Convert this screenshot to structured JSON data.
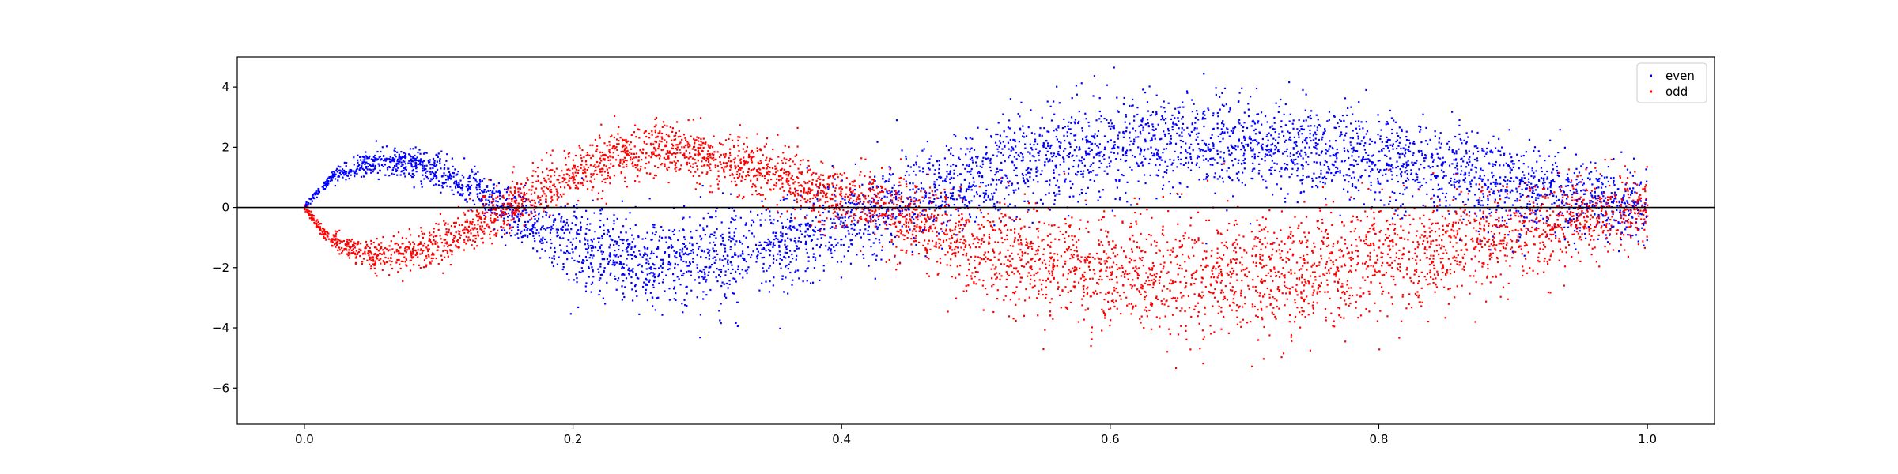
{
  "chart_data": {
    "type": "scatter",
    "title": "",
    "xlabel": "",
    "ylabel": "",
    "xlim": [
      -0.05,
      1.05
    ],
    "ylim": [
      -7.2,
      5.0
    ],
    "xticks": [
      0.0,
      0.2,
      0.4,
      0.6,
      0.8,
      1.0
    ],
    "xtick_labels": [
      "0.0",
      "0.2",
      "0.4",
      "0.6",
      "0.8",
      "1.0"
    ],
    "yticks": [
      4,
      2,
      0,
      -2,
      -4,
      -6
    ],
    "ytick_labels": [
      "4",
      "2",
      "0",
      "−2",
      "−4",
      "−6"
    ],
    "grid": false,
    "legend_position": "top-right",
    "reference_line": {
      "y": 0,
      "color": "#000000"
    },
    "points_per_series": 5000,
    "series": [
      {
        "name": "even",
        "color": "#0000ff",
        "marker": "dot",
        "trend": {
          "x": [
            0.0,
            0.02,
            0.05,
            0.08,
            0.11,
            0.14,
            0.17,
            0.2,
            0.23,
            0.26,
            0.29,
            0.32,
            0.35,
            0.38,
            0.41,
            0.44,
            0.47,
            0.5,
            0.55,
            0.6,
            0.65,
            0.7,
            0.75,
            0.8,
            0.85,
            0.9,
            0.95,
            1.0
          ],
          "y": [
            0.0,
            1.0,
            1.5,
            1.45,
            1.0,
            0.2,
            -0.6,
            -1.2,
            -1.6,
            -1.8,
            -1.8,
            -1.6,
            -1.2,
            -0.8,
            -0.3,
            0.1,
            0.5,
            1.0,
            1.6,
            2.1,
            2.2,
            2.1,
            1.9,
            1.6,
            1.2,
            0.7,
            0.3,
            0.0
          ]
        },
        "spread": {
          "x": [
            0.0,
            0.05,
            0.1,
            0.15,
            0.2,
            0.3,
            0.4,
            0.5,
            0.6,
            0.7,
            0.8,
            0.9,
            1.0
          ],
          "y": [
            0.05,
            0.2,
            0.3,
            0.4,
            0.7,
            0.8,
            0.7,
            0.8,
            0.8,
            0.8,
            0.75,
            0.7,
            0.6
          ]
        }
      },
      {
        "name": "odd",
        "color": "#ff0000",
        "marker": "dot",
        "trend": {
          "x": [
            0.0,
            0.02,
            0.05,
            0.08,
            0.11,
            0.14,
            0.17,
            0.2,
            0.23,
            0.26,
            0.29,
            0.32,
            0.35,
            0.38,
            0.41,
            0.44,
            0.47,
            0.5,
            0.55,
            0.6,
            0.65,
            0.7,
            0.75,
            0.8,
            0.85,
            0.9,
            0.95,
            1.0
          ],
          "y": [
            0.0,
            -1.1,
            -1.6,
            -1.5,
            -1.0,
            -0.3,
            0.4,
            1.1,
            1.7,
            1.9,
            1.8,
            1.5,
            1.1,
            0.6,
            0.2,
            -0.2,
            -0.7,
            -1.2,
            -1.8,
            -2.1,
            -2.3,
            -2.3,
            -2.1,
            -1.8,
            -1.4,
            -0.9,
            -0.4,
            0.0
          ]
        },
        "spread": {
          "x": [
            0.0,
            0.05,
            0.1,
            0.15,
            0.2,
            0.3,
            0.4,
            0.5,
            0.6,
            0.7,
            0.8,
            0.9,
            1.0
          ],
          "y": [
            0.05,
            0.25,
            0.35,
            0.4,
            0.45,
            0.45,
            0.5,
            0.8,
            0.95,
            1.0,
            0.95,
            0.8,
            0.6
          ]
        }
      }
    ]
  }
}
